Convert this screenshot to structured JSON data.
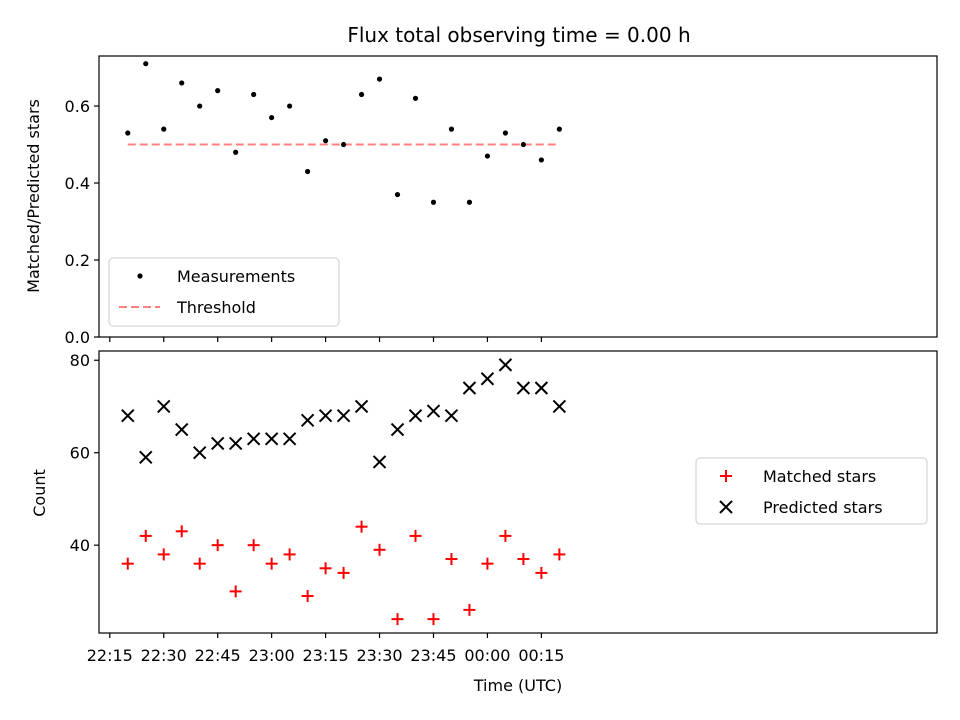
{
  "chart_data": [
    {
      "type": "scatter",
      "title": "Flux total observing time = 0.00 h",
      "xlabel": "",
      "ylabel": "Matched/Predicted stars",
      "ylim": [
        0.0,
        0.73
      ],
      "yticks": [
        "0.0",
        "0.2",
        "0.4",
        "0.6"
      ],
      "x": [
        "22:20",
        "22:25",
        "22:30",
        "22:35",
        "22:40",
        "22:45",
        "22:50",
        "22:55",
        "23:00",
        "23:05",
        "23:10",
        "23:15",
        "23:20",
        "23:25",
        "23:30",
        "23:35",
        "23:40",
        "23:45",
        "23:50",
        "23:55",
        "00:00",
        "00:05",
        "00:10",
        "00:15",
        "00:20"
      ],
      "series": [
        {
          "name": "Measurements",
          "marker": "dot",
          "color": "#000000",
          "values": [
            0.53,
            0.71,
            0.54,
            0.66,
            0.6,
            0.64,
            0.48,
            0.63,
            0.57,
            0.6,
            0.43,
            0.51,
            0.5,
            0.63,
            0.67,
            0.37,
            0.62,
            0.35,
            0.54,
            0.35,
            0.47,
            0.53,
            0.5,
            0.46,
            0.54
          ]
        },
        {
          "name": "Threshold",
          "marker": "dashed-line",
          "color": "#ff7f7f",
          "values": [
            0.5,
            0.5,
            0.5,
            0.5,
            0.5,
            0.5,
            0.5,
            0.5,
            0.5,
            0.5,
            0.5,
            0.5,
            0.5,
            0.5,
            0.5,
            0.5,
            0.5,
            0.5,
            0.5,
            0.5,
            0.5,
            0.5,
            0.5,
            0.5,
            0.5
          ]
        }
      ],
      "legend": "lower-left",
      "grid": false
    },
    {
      "type": "scatter",
      "title": "",
      "xlabel": "Time (UTC)",
      "ylabel": "Count",
      "ylim": [
        21,
        82
      ],
      "yticks": [
        "40",
        "60",
        "80"
      ],
      "xticks": [
        "22:15",
        "22:30",
        "22:45",
        "23:00",
        "23:15",
        "23:30",
        "23:45",
        "00:00",
        "00:15"
      ],
      "x": [
        "22:20",
        "22:25",
        "22:30",
        "22:35",
        "22:40",
        "22:45",
        "22:50",
        "22:55",
        "23:00",
        "23:05",
        "23:10",
        "23:15",
        "23:20",
        "23:25",
        "23:30",
        "23:35",
        "23:40",
        "23:45",
        "23:50",
        "23:55",
        "00:00",
        "00:05",
        "00:10",
        "00:15",
        "00:20"
      ],
      "series": [
        {
          "name": "Matched stars",
          "marker": "plus",
          "color": "#ff0000",
          "values": [
            36,
            42,
            38,
            43,
            36,
            40,
            30,
            40,
            36,
            38,
            29,
            35,
            34,
            44,
            39,
            24,
            42,
            24,
            37,
            26,
            36,
            42,
            37,
            34,
            38
          ]
        },
        {
          "name": "Predicted stars",
          "marker": "x",
          "color": "#000000",
          "values": [
            68,
            59,
            70,
            65,
            60,
            62,
            62,
            63,
            63,
            63,
            67,
            68,
            68,
            70,
            58,
            65,
            68,
            69,
            68,
            74,
            76,
            79,
            74,
            74,
            70
          ]
        }
      ],
      "legend": "center-right",
      "grid": false
    }
  ]
}
